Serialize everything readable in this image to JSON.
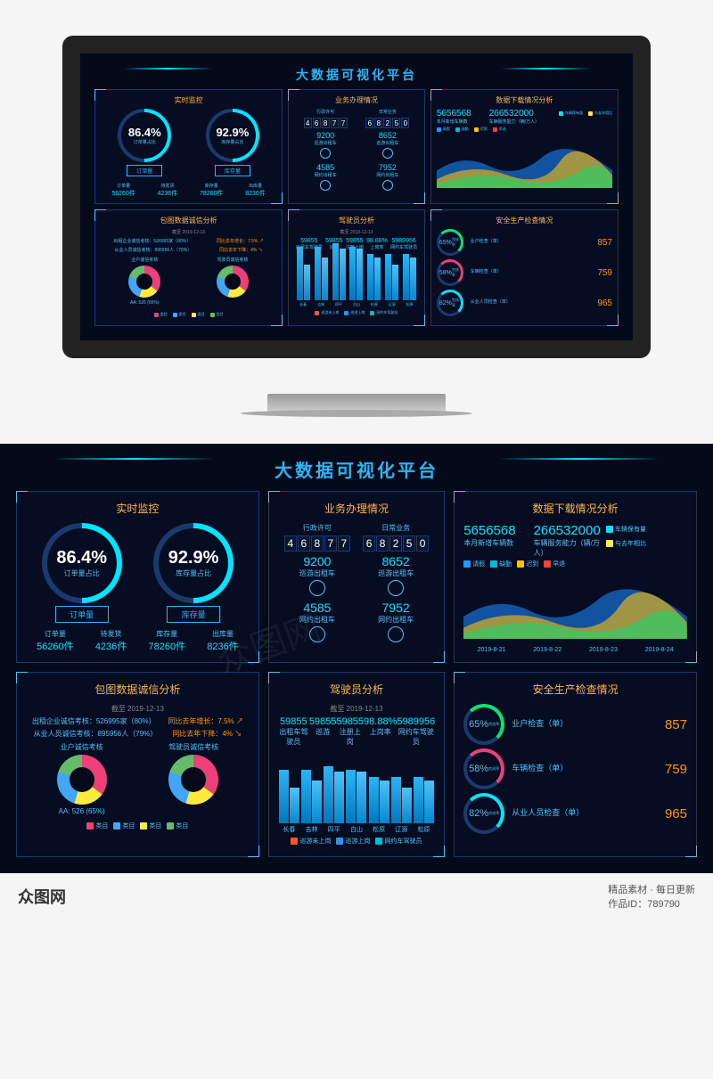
{
  "title": "大数据可视化平台",
  "monitor": {
    "title": "实时监控",
    "gauge1": {
      "val": "86.4%",
      "lbl": "订单量占比",
      "btn": "订单量"
    },
    "gauge2": {
      "val": "92.9%",
      "lbl": "库存量占比",
      "btn": "库存量"
    },
    "stats": [
      {
        "l": "订单量",
        "v": "56260件"
      },
      {
        "l": "待发货",
        "v": "4236件"
      },
      {
        "l": "库存量",
        "v": "78260件"
      },
      {
        "l": "出库量",
        "v": "8236件"
      }
    ]
  },
  "biz": {
    "title": "业务办理情况",
    "h1": "行政许可",
    "h2": "日常业务",
    "d1": "46877",
    "d2": "68250",
    "rows": [
      {
        "n1": "9200",
        "l1": "巡游出租车",
        "n2": "8652",
        "l2": "巡游出租车"
      },
      {
        "n1": "4585",
        "l1": "网约出租车",
        "n2": "7952",
        "l2": "网约出租车"
      }
    ]
  },
  "download": {
    "title": "数据下载情况分析",
    "n1": "5656568",
    "l1": "本月新增车辆数",
    "n2": "266532000",
    "l2": "车辆服务能力（辆/万人）",
    "legend1": [
      {
        "c": "#00e5ff",
        "t": "车辆保有量"
      },
      {
        "c": "#ffeb3b",
        "t": "与去年相比"
      }
    ],
    "legend2": [
      {
        "c": "#2196f3",
        "t": "请假"
      },
      {
        "c": "#00bcd4",
        "t": "缺勤"
      },
      {
        "c": "#ffc107",
        "t": "迟到"
      },
      {
        "c": "#f44336",
        "t": "早退"
      }
    ],
    "xaxis": [
      "2019-8-21",
      "2019-8-22",
      "2019-8-23",
      "2019-8-24"
    ]
  },
  "credit": {
    "title": "包图数据诚信分析",
    "sub": "截至 2019-12-13",
    "m1": "出租企业诚信考核：526995家（80%）",
    "m1b": "同比去年增长：7.5%",
    "m2": "从业人员诚信考核：895956人（79%）",
    "m2b": "同比去年下降：4%",
    "pie1": "业户诚信考核",
    "pie2": "驾驶员诚信考核",
    "pielbl": "AA: 526 (65%)",
    "legend": [
      {
        "c": "#ec407a",
        "t": "类目"
      },
      {
        "c": "#42a5f5",
        "t": "类目"
      },
      {
        "c": "#ffeb3b",
        "t": "类目"
      },
      {
        "c": "#66bb6a",
        "t": "类目"
      }
    ]
  },
  "driver": {
    "title": "驾驶员分析",
    "sub": "截至 2019-12-13",
    "stats": [
      {
        "v": "59855",
        "l": "出租车驾驶员"
      },
      {
        "v": "59855",
        "l": "巡游"
      },
      {
        "v": "59855",
        "l": "注册上岗"
      },
      {
        "v": "98.88%",
        "l": "上岗率"
      },
      {
        "v": "5989956",
        "l": "网约车驾驶员"
      }
    ],
    "bars": {
      "cities": [
        "长春",
        "吉林",
        "四平",
        "白山",
        "松原",
        "辽源",
        "松原"
      ],
      "vals": [
        [
          150,
          100
        ],
        [
          150,
          120
        ],
        [
          160,
          145
        ],
        [
          150,
          145
        ],
        [
          130,
          120
        ],
        [
          130,
          100
        ],
        [
          130,
          120
        ]
      ]
    },
    "legend": [
      {
        "c": "#ff5722",
        "t": "巡游未上岗"
      },
      {
        "c": "#2196f3",
        "t": "巡游上岗"
      },
      {
        "c": "#00bcd4",
        "t": "网约车驾驶员"
      }
    ]
  },
  "safety": {
    "title": "安全生产检查情况",
    "rows": [
      {
        "p": "65%",
        "c": "c1",
        "l": "业户检查（单）",
        "v": "857"
      },
      {
        "p": "58%",
        "c": "c2",
        "l": "车辆检查（单）",
        "v": "759"
      },
      {
        "p": "82%",
        "c": "c3",
        "l": "从业人员检查（单）",
        "v": "965"
      }
    ]
  },
  "footer": {
    "logo": "众图网",
    "t1": "精品素材 · 每日更新",
    "t2": "作品ID：789790"
  }
}
